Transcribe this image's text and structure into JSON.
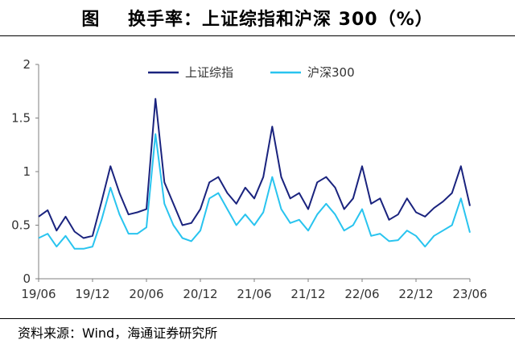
{
  "title": "图    换手率：上证综指和沪深 300（%）",
  "source": "资料来源：Wind，海通证券研究所",
  "colors": {
    "sse": "#1a237e",
    "csi300": "#29c4ef",
    "axis": "#7f7f7f"
  },
  "chart_data": {
    "type": "line",
    "title": "换手率：上证综指和沪深 300（%）",
    "xlabel": "",
    "ylabel": "",
    "ylim": [
      0,
      2
    ],
    "yticks": [
      "0",
      "0.5",
      "1",
      "1.5",
      "2"
    ],
    "xtick_labels": [
      "19/06",
      "19/12",
      "20/06",
      "20/12",
      "21/06",
      "21/12",
      "22/06",
      "22/12",
      "23/06"
    ],
    "x": [
      "2019-06",
      "2019-07",
      "2019-08",
      "2019-09",
      "2019-10",
      "2019-11",
      "2019-12",
      "2020-01",
      "2020-02",
      "2020-03",
      "2020-04",
      "2020-05",
      "2020-06",
      "2020-07",
      "2020-08",
      "2020-09",
      "2020-10",
      "2020-11",
      "2020-12",
      "2021-01",
      "2021-02",
      "2021-03",
      "2021-04",
      "2021-05",
      "2021-06",
      "2021-07",
      "2021-08",
      "2021-09",
      "2021-10",
      "2021-11",
      "2021-12",
      "2022-01",
      "2022-02",
      "2022-03",
      "2022-04",
      "2022-05",
      "2022-06",
      "2022-07",
      "2022-08",
      "2022-09",
      "2022-10",
      "2022-11",
      "2022-12",
      "2023-01",
      "2023-02",
      "2023-03",
      "2023-04",
      "2023-05",
      "2023-06"
    ],
    "legend_position": "top",
    "grid": false,
    "series": [
      {
        "name": "上证综指",
        "values": [
          0.58,
          0.64,
          0.45,
          0.58,
          0.44,
          0.38,
          0.4,
          0.72,
          1.05,
          0.8,
          0.6,
          0.62,
          0.65,
          1.68,
          0.9,
          0.7,
          0.5,
          0.52,
          0.65,
          0.9,
          0.95,
          0.8,
          0.7,
          0.85,
          0.75,
          0.95,
          1.42,
          0.95,
          0.75,
          0.8,
          0.65,
          0.9,
          0.95,
          0.85,
          0.65,
          0.75,
          1.05,
          0.7,
          0.75,
          0.55,
          0.6,
          0.75,
          0.62,
          0.58,
          0.66,
          0.72,
          0.8,
          1.05,
          0.68
        ]
      },
      {
        "name": "沪深300",
        "values": [
          0.38,
          0.42,
          0.3,
          0.4,
          0.28,
          0.28,
          0.3,
          0.55,
          0.85,
          0.6,
          0.42,
          0.42,
          0.48,
          1.35,
          0.7,
          0.5,
          0.38,
          0.35,
          0.45,
          0.75,
          0.8,
          0.65,
          0.5,
          0.6,
          0.5,
          0.62,
          0.95,
          0.65,
          0.52,
          0.55,
          0.45,
          0.6,
          0.7,
          0.6,
          0.45,
          0.5,
          0.65,
          0.4,
          0.42,
          0.35,
          0.36,
          0.45,
          0.4,
          0.3,
          0.4,
          0.45,
          0.5,
          0.75,
          0.43
        ]
      }
    ]
  }
}
